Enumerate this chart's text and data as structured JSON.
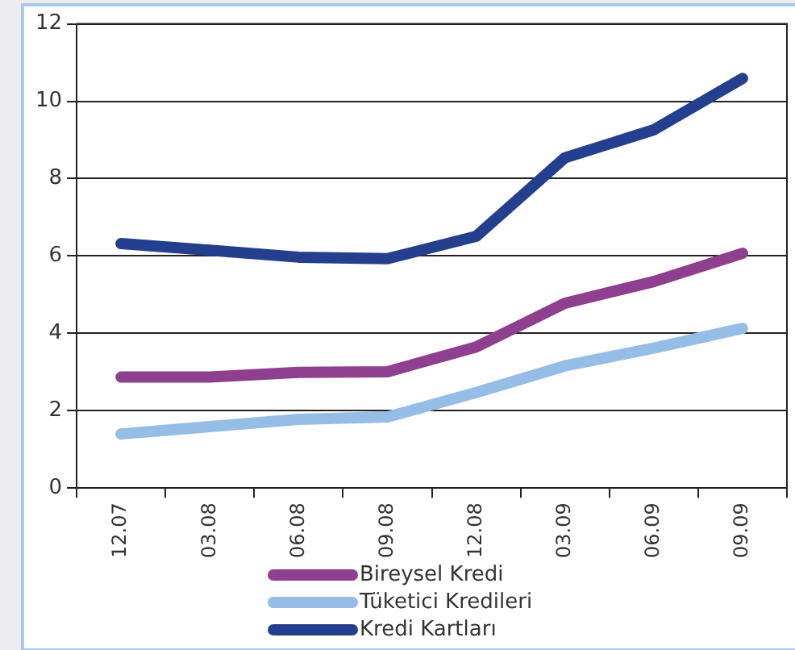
{
  "chart_data": {
    "type": "line",
    "categories": [
      "12.07",
      "03.08",
      "06.08",
      "09.08",
      "12.08",
      "03.09",
      "06.09",
      "09.09"
    ],
    "series": [
      {
        "name": "Bireysel Kredi",
        "color": "#8e3f8e",
        "values": [
          2.87,
          2.87,
          2.99,
          3.01,
          3.65,
          4.78,
          5.34,
          6.07
        ]
      },
      {
        "name": "Tüketici Kredileri",
        "color": "#95bde6",
        "values": [
          1.4,
          1.59,
          1.78,
          1.84,
          2.47,
          3.16,
          3.62,
          4.13
        ]
      },
      {
        "name": "Kredi Kartları",
        "color": "#253f8f",
        "values": [
          6.32,
          6.15,
          5.97,
          5.93,
          6.51,
          8.54,
          9.26,
          10.59
        ]
      }
    ],
    "ylim": [
      0,
      12
    ],
    "yticks": [
      0,
      2,
      4,
      6,
      8,
      10,
      12
    ],
    "grid": "y",
    "legend": "bottom",
    "marker": "none",
    "line_style": "solid"
  }
}
